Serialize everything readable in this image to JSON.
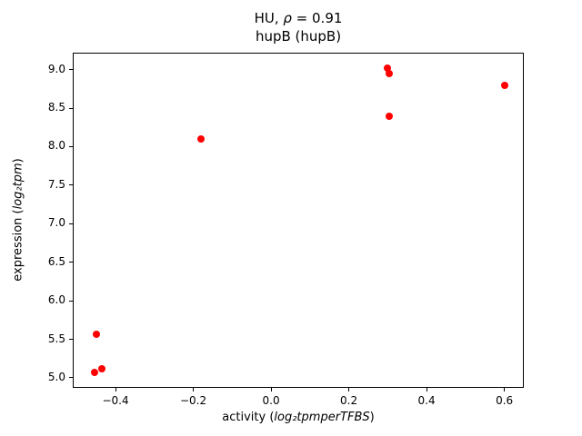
{
  "title": {
    "line1_prefix": "HU, ",
    "line1_math": "ρ",
    "line1_suffix": " = 0.91",
    "line2": "hupB (hupB)"
  },
  "xlabel": {
    "prefix": "activity (",
    "math": "log₂tpmperTFBS",
    "suffix": ")"
  },
  "ylabel": {
    "prefix": "expression (",
    "math": "log₂tpm",
    "suffix": ")"
  },
  "chart_data": {
    "type": "scatter",
    "title": "HU, ρ = 0.91\nhupB (hupB)",
    "xlabel": "activity (log₂tpmperTFBS)",
    "ylabel": "expression (log₂tpm)",
    "marker_color": "#ff0000",
    "marker_diameter_px": 8,
    "xlim": [
      -0.51,
      0.65
    ],
    "ylim": [
      4.87,
      9.22
    ],
    "grid": false,
    "legend": null,
    "xticks": {
      "values": [
        -0.4,
        -0.2,
        0.0,
        0.2,
        0.4,
        0.6
      ],
      "labels": [
        "−0.4",
        "−0.2",
        "0.0",
        "0.2",
        "0.4",
        "0.6"
      ]
    },
    "yticks": {
      "values": [
        5.0,
        5.5,
        6.0,
        6.5,
        7.0,
        7.5,
        8.0,
        8.5,
        9.0
      ],
      "labels": [
        "5.0",
        "5.5",
        "6.0",
        "6.5",
        "7.0",
        "7.5",
        "8.0",
        "8.5",
        "9.0"
      ]
    },
    "points": [
      [
        -0.45,
        5.57
      ],
      [
        -0.455,
        5.07
      ],
      [
        -0.435,
        5.12
      ],
      [
        -0.18,
        8.1
      ],
      [
        0.3,
        9.02
      ],
      [
        0.305,
        8.95
      ],
      [
        0.305,
        8.4
      ],
      [
        0.6,
        8.8
      ]
    ]
  }
}
